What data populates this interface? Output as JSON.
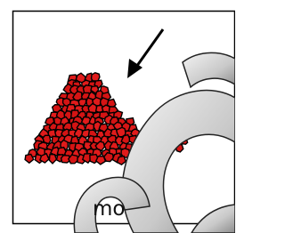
{
  "image": {
    "caption_fragment": "mo"
  }
}
